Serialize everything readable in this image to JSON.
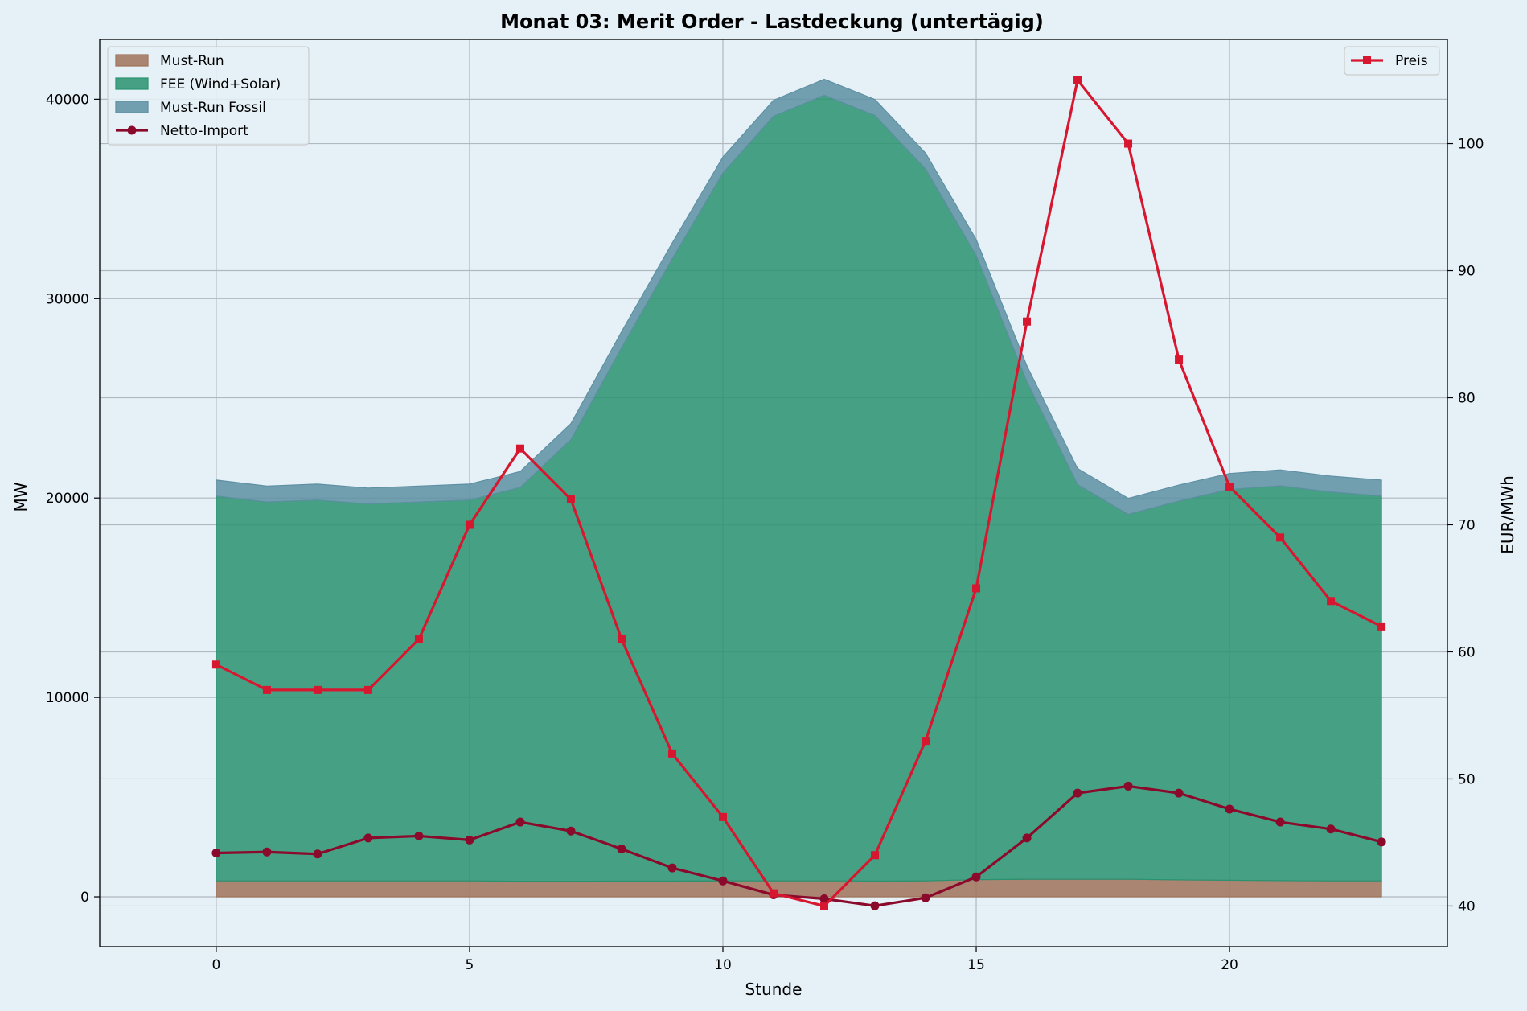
{
  "chart_data": {
    "type": "area",
    "title": "Monat 03: Merit Order - Lastdeckung (untertägig)",
    "xlabel": "Stunde",
    "ylabel": "MW",
    "y2label": "EUR/MWh",
    "x": [
      0,
      1,
      2,
      3,
      4,
      5,
      6,
      7,
      8,
      9,
      10,
      11,
      12,
      13,
      14,
      15,
      16,
      17,
      18,
      19,
      20,
      21,
      22,
      23
    ],
    "xlim": [
      -2.3,
      24.3
    ],
    "ylim": [
      -2500,
      43000
    ],
    "y2lim": [
      36.8,
      108.2
    ],
    "xticks": [
      0,
      5,
      10,
      15,
      20
    ],
    "yticks": [
      0,
      10000,
      20000,
      30000,
      40000
    ],
    "y2ticks": [
      40,
      50,
      60,
      70,
      80,
      90,
      100
    ],
    "grid": true,
    "stacked_series": [
      {
        "name": "Must-Run",
        "color": "#a0735a",
        "values": [
          800,
          800,
          800,
          800,
          800,
          800,
          780,
          780,
          790,
          790,
          800,
          800,
          800,
          790,
          800,
          860,
          880,
          880,
          880,
          850,
          830,
          810,
          800,
          800
        ]
      },
      {
        "name": "FEE (Wind+Solar)",
        "color": "#2a9270",
        "values": [
          19300,
          19000,
          19100,
          18900,
          19000,
          19100,
          19750,
          22150,
          26750,
          31200,
          35500,
          38350,
          39400,
          38400,
          35700,
          31300,
          24950,
          19800,
          18300,
          19000,
          19600,
          19800,
          19500,
          19300
        ]
      },
      {
        "name": "Must-Run Fossil",
        "color": "#5e90a3",
        "values": [
          800,
          800,
          800,
          800,
          800,
          800,
          800,
          800,
          800,
          800,
          800,
          800,
          800,
          800,
          800,
          800,
          800,
          800,
          800,
          800,
          800,
          800,
          800,
          800
        ]
      }
    ],
    "line_series": [
      {
        "name": "Netto-Import",
        "axis": "left",
        "color": "#8b0a2c",
        "marker": "circle",
        "values": [
          2200,
          2250,
          2150,
          2950,
          3050,
          2850,
          3750,
          3300,
          2400,
          1450,
          800,
          100,
          -100,
          -450,
          -50,
          1000,
          2950,
          5200,
          5550,
          5200,
          4400,
          3750,
          3400,
          2750
        ]
      },
      {
        "name": "Preis",
        "axis": "right",
        "color": "#d7172f",
        "marker": "square",
        "values": [
          59,
          57,
          57,
          57,
          61,
          70,
          76,
          72,
          61,
          52,
          47,
          41,
          40,
          44,
          53,
          65,
          86,
          105,
          100,
          83,
          73,
          69,
          64,
          62
        ]
      }
    ],
    "legend_left": {
      "position": "upper-left",
      "entries": [
        "Must-Run",
        "FEE (Wind+Solar)",
        "Must-Run Fossil",
        "Netto-Import"
      ]
    },
    "legend_right": {
      "position": "upper-right",
      "entries": [
        "Preis"
      ]
    }
  }
}
